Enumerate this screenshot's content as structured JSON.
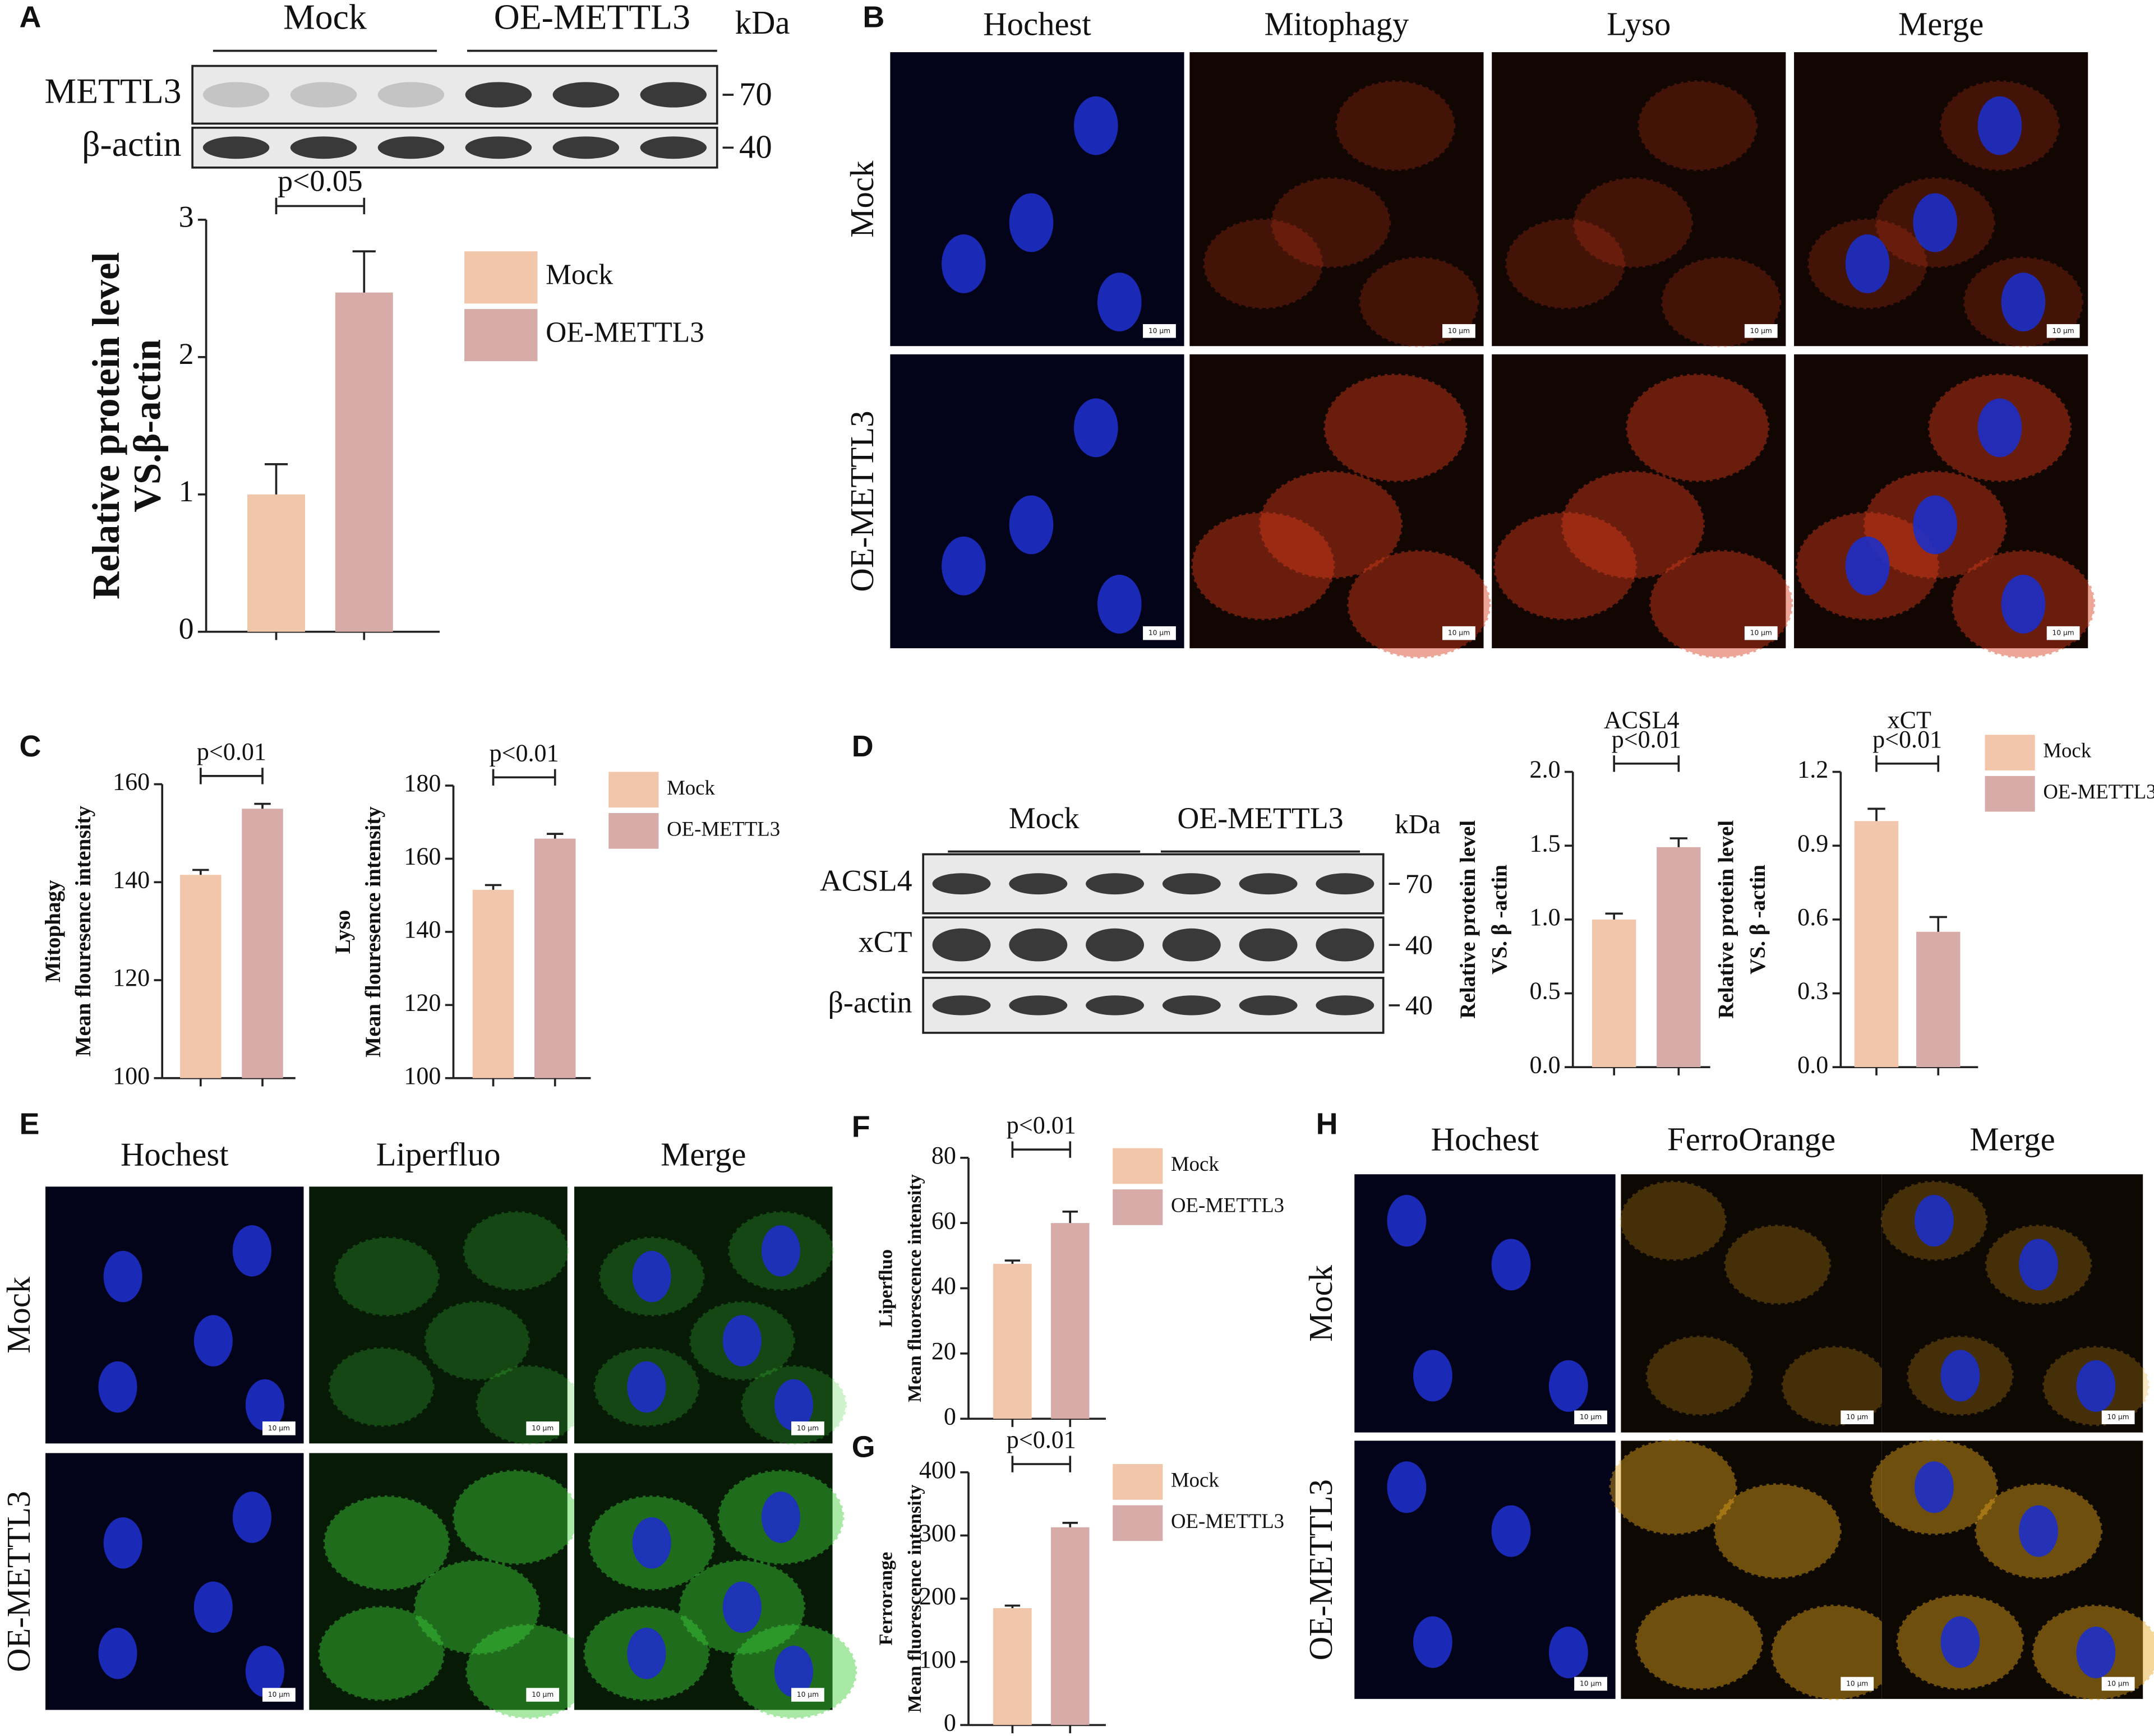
{
  "panel_labels": [
    "A",
    "B",
    "C",
    "D",
    "E",
    "F",
    "G",
    "H"
  ],
  "blot_a": {
    "groups": [
      "Mock",
      "OE-METTL3"
    ],
    "unit": "kDa",
    "rows": [
      {
        "label": "METTL3",
        "kda": 70
      },
      {
        "label": "β-actin",
        "kda": 40
      }
    ]
  },
  "blot_d": {
    "groups": [
      "Mock",
      "OE-METTL3"
    ],
    "unit": "kDa",
    "rows": [
      {
        "label": "ACSL4",
        "kda": 70
      },
      {
        "label": "xCT",
        "kda": 40
      },
      {
        "label": "β-actin",
        "kda": 40
      }
    ]
  },
  "imaging_b": {
    "columns": [
      "Hochest",
      "Mitophagy",
      "Lyso",
      "Merge"
    ],
    "rows": [
      "Mock",
      "OE-METTL3"
    ],
    "scale_bar": "10 μm"
  },
  "imaging_e": {
    "columns": [
      "Hochest",
      "Liperfluo",
      "Merge"
    ],
    "rows": [
      "Mock",
      "OE-METTL3"
    ],
    "scale_bar": "10 μm"
  },
  "imaging_h": {
    "columns": [
      "Hochest",
      "FerroOrange",
      "Merge"
    ],
    "rows": [
      "Mock",
      "OE-METTL3"
    ],
    "scale_bar": "10 μm"
  },
  "chart_data": [
    {
      "type": "bar",
      "ylabel": [
        "Relative protein level",
        "VS.β-actin"
      ],
      "annotation": "p<0.05",
      "legend": true,
      "ylim": [
        0,
        3
      ],
      "yticks": [
        0,
        1,
        2,
        3
      ],
      "series": [
        {
          "name": "Mock",
          "color": "#f2c6aa",
          "values": [
            1.0
          ],
          "errors": [
            0.22
          ]
        },
        {
          "name": "OE-METTL3",
          "color": "#d6aba8",
          "values": [
            2.47
          ],
          "errors": [
            0.3
          ]
        }
      ]
    },
    {
      "type": "bar",
      "ylabel": [
        "Mitophagy",
        "Mean flouresence intensity"
      ],
      "annotation": "p<0.01",
      "legend": false,
      "ylim": [
        100,
        160
      ],
      "yticks": [
        100,
        120,
        140,
        160
      ],
      "series": [
        {
          "name": "Mock",
          "color": "#f2c6aa",
          "values": [
            141.5
          ],
          "errors": [
            1
          ]
        },
        {
          "name": "OE-METTL3",
          "color": "#d6aba8",
          "values": [
            155
          ],
          "errors": [
            1
          ]
        }
      ]
    },
    {
      "type": "bar",
      "ylabel": [
        "Lyso",
        "Mean flouresence intensity"
      ],
      "annotation": "p<0.01",
      "legend": true,
      "ylim": [
        100,
        180
      ],
      "yticks": [
        100,
        120,
        140,
        160,
        180
      ],
      "series": [
        {
          "name": "Mock",
          "color": "#f2c6aa",
          "values": [
            151.5
          ],
          "errors": [
            1.3
          ]
        },
        {
          "name": "OE-METTL3",
          "color": "#d6aba8",
          "values": [
            165.5
          ],
          "errors": [
            1.3
          ]
        }
      ]
    },
    {
      "type": "bar",
      "title": "ACSL4",
      "ylabel": [
        "Relative protein level",
        "VS.  β -actin"
      ],
      "annotation": "p<0.01",
      "legend": false,
      "ylim": [
        0,
        2
      ],
      "yticks": [
        {
          "value": 0,
          "label": "0.0"
        },
        {
          "value": 0.5,
          "label": "0.5"
        },
        {
          "value": 1,
          "label": "1.0"
        },
        {
          "value": 1.5,
          "label": "1.5"
        },
        {
          "value": 2,
          "label": "2.0"
        }
      ],
      "series": [
        {
          "name": "Mock",
          "color": "#f2c6aa",
          "values": [
            1.0
          ],
          "errors": [
            0.04
          ]
        },
        {
          "name": "OE-METTL3",
          "color": "#d6aba8",
          "values": [
            1.49
          ],
          "errors": [
            0.06
          ]
        }
      ]
    },
    {
      "type": "bar",
      "title": "xCT",
      "ylabel": [
        "Relative protein level",
        "VS.  β -actin"
      ],
      "annotation": "p<0.01",
      "legend": true,
      "ylim": [
        0,
        1.2
      ],
      "yticks": [
        {
          "value": 0,
          "label": "0.0"
        },
        0.3,
        0.6,
        0.9,
        1.2
      ],
      "series": [
        {
          "name": "Mock",
          "color": "#f2c6aa",
          "values": [
            1.0
          ],
          "errors": [
            0.05
          ]
        },
        {
          "name": "OE-METTL3",
          "color": "#d6aba8",
          "values": [
            0.55
          ],
          "errors": [
            0.06
          ]
        }
      ]
    },
    {
      "type": "bar",
      "ylabel": [
        "Liperfluo",
        "Mean  fluorescence intensity"
      ],
      "annotation": "p<0.01",
      "legend": true,
      "ylim": [
        0,
        80
      ],
      "yticks": [
        0,
        20,
        40,
        60,
        80
      ],
      "series": [
        {
          "name": "Mock",
          "color": "#f2c6aa",
          "values": [
            47.5
          ],
          "errors": [
            1
          ]
        },
        {
          "name": "OE-METTL3",
          "color": "#d6aba8",
          "values": [
            60
          ],
          "errors": [
            3.5
          ]
        }
      ]
    },
    {
      "type": "bar",
      "ylabel": [
        "Ferrorange",
        "Mean  fluorescence intensity"
      ],
      "annotation": "p<0.01",
      "legend": true,
      "ylim": [
        0,
        400
      ],
      "yticks": [
        0,
        100,
        200,
        300,
        400
      ],
      "series": [
        {
          "name": "Mock",
          "color": "#f2c6aa",
          "values": [
            185
          ],
          "errors": [
            4
          ]
        },
        {
          "name": "OE-METTL3",
          "color": "#d6aba8",
          "values": [
            313
          ],
          "errors": [
            7
          ]
        }
      ]
    }
  ]
}
